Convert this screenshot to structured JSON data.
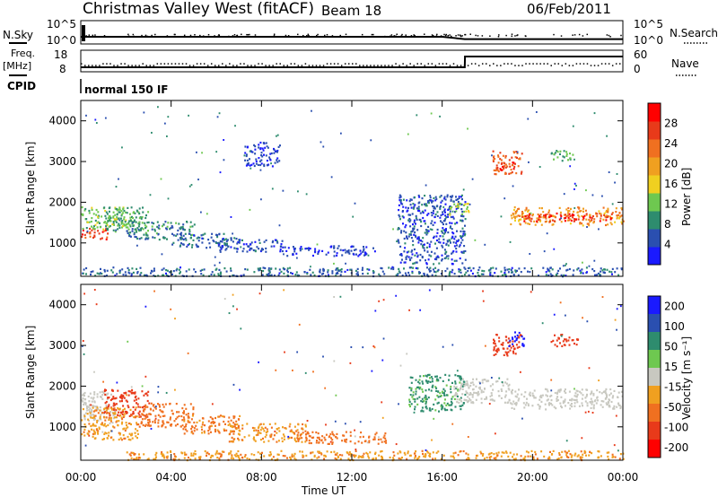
{
  "header": {
    "station": "Christmas Valley West (fitACF)",
    "beam": "Beam 18",
    "date": "06/Feb/2011"
  },
  "left_labels": {
    "nsky": "N.Sky",
    "freq": "Freq.",
    "freq_unit": "[MHz]",
    "cpid": "CPID"
  },
  "right_labels": {
    "nsearch": "N.Search",
    "nave": "Nave"
  },
  "cpid_value": "normal 150 IF",
  "colors": {
    "ground_scatter": "#c8c8c0",
    "accent_power": [
      "#1a1aff",
      "#2a4fb0",
      "#2e8c6e",
      "#6ec850",
      "#f0d020",
      "#f0a020",
      "#f07020",
      "#e83a1a",
      "#ff0000"
    ],
    "accent_velocity": [
      "#1a1aff",
      "#2a4fb0",
      "#2e8c6e",
      "#6ec850",
      "#c8c8c0",
      "#f0a020",
      "#f07020",
      "#e83a1a",
      "#ff0000"
    ]
  },
  "chart_data": [
    {
      "type": "line",
      "title": "N.Sky / N.Search",
      "ylabel": "N.Sky",
      "y_ticks_left": [
        "10^5",
        "10^0"
      ],
      "y_ticks_right": [
        "10^5",
        "10^0"
      ],
      "x": [
        0,
        2,
        4,
        6,
        8,
        10,
        12,
        14,
        16,
        17,
        18,
        20,
        22,
        24
      ],
      "series": [
        {
          "name": "N.Sky",
          "values": [
            1.6,
            1.6,
            1.6,
            1.6,
            1.6,
            1.6,
            1.6,
            1.6,
            1.6,
            1.0,
            1.0,
            1.0,
            1.0,
            1.0
          ]
        }
      ]
    },
    {
      "type": "line",
      "ylabel": "Freq. [MHz]",
      "y_ticks_left": [
        "18",
        "8"
      ],
      "y_ticks_right": [
        "60",
        "0"
      ],
      "x": [
        0,
        4,
        8,
        12,
        16,
        17,
        17.01,
        20,
        24
      ],
      "series": [
        {
          "name": "Freq",
          "values": [
            10.5,
            10.5,
            10.5,
            10.5,
            10.5,
            10.5,
            18.0,
            18.0,
            18.0
          ]
        },
        {
          "name": "Nave",
          "values": [
            25,
            25,
            25,
            25,
            25,
            25,
            25,
            25,
            25
          ]
        }
      ]
    },
    {
      "type": "heatmap",
      "ylabel": "Slant Range [km]",
      "y_ticks": [
        "1000",
        "2000",
        "3000",
        "4000"
      ],
      "ylim": [
        180,
        4500
      ],
      "xlim": [
        0,
        24
      ],
      "colorbar_label": "Power [dB]",
      "colorbar_ticks": [
        "4",
        "8",
        "12",
        "16",
        "20",
        "24",
        "28"
      ],
      "regions": [
        {
          "x0": 0.0,
          "x1": 1.2,
          "y0": 1100,
          "y1": 1400,
          "value": 26
        },
        {
          "x0": 0.0,
          "x1": 2.0,
          "y0": 1350,
          "y1": 1900,
          "value": 12
        },
        {
          "x0": 1.0,
          "x1": 3.0,
          "y0": 1300,
          "y1": 1900,
          "value": 10
        },
        {
          "x0": 2.0,
          "x1": 5.0,
          "y0": 1100,
          "y1": 1550,
          "value": 8
        },
        {
          "x0": 4.0,
          "x1": 7.0,
          "y0": 900,
          "y1": 1250,
          "value": 6
        },
        {
          "x0": 6.0,
          "x1": 9.0,
          "y0": 800,
          "y1": 1100,
          "value": 5
        },
        {
          "x0": 9.0,
          "x1": 13.0,
          "y0": 700,
          "y1": 950,
          "value": 4
        },
        {
          "x0": 0.0,
          "x1": 24.0,
          "y0": 200,
          "y1": 420,
          "value": 6
        },
        {
          "x0": 14.0,
          "x1": 17.0,
          "y0": 500,
          "y1": 2200,
          "value": 5
        },
        {
          "x0": 16.3,
          "x1": 17.2,
          "y0": 1700,
          "y1": 2000,
          "value": 14
        },
        {
          "x0": 18.2,
          "x1": 19.5,
          "y0": 2700,
          "y1": 3300,
          "value": 24
        },
        {
          "x0": 18.5,
          "x1": 19.2,
          "y0": 2800,
          "y1": 3000,
          "value": 28
        },
        {
          "x0": 20.8,
          "x1": 21.8,
          "y0": 3000,
          "y1": 3300,
          "value": 10
        },
        {
          "x0": 19.0,
          "x1": 24.0,
          "y0": 1450,
          "y1": 1900,
          "value": 20
        },
        {
          "x0": 19.5,
          "x1": 23.5,
          "y0": 1550,
          "y1": 1750,
          "value": 28
        },
        {
          "x0": 7.2,
          "x1": 8.8,
          "y0": 2900,
          "y1": 3500,
          "value": 4
        }
      ]
    },
    {
      "type": "heatmap",
      "ylabel": "Slant Range [km]",
      "y_ticks": [
        "1000",
        "2000",
        "3000",
        "4000"
      ],
      "ylim": [
        180,
        4500
      ],
      "xlim": [
        0,
        24
      ],
      "x_ticks": [
        "00:00",
        "04:00",
        "08:00",
        "12:00",
        "16:00",
        "20:00",
        "00:00"
      ],
      "xlabel": "Time UT",
      "colorbar_label": "Velocity [m s⁻¹]",
      "colorbar_ticks": [
        "200",
        "100",
        "50",
        "15",
        "-15",
        "-50",
        "-100",
        "-200"
      ],
      "regions": [
        {
          "x0": 0.0,
          "x1": 1.5,
          "y0": 1100,
          "y1": 1900,
          "value": 0,
          "ground": true
        },
        {
          "x0": 1.0,
          "x1": 3.0,
          "y0": 1250,
          "y1": 1950,
          "value": -120
        },
        {
          "x0": 2.5,
          "x1": 5.0,
          "y0": 1000,
          "y1": 1600,
          "value": -70
        },
        {
          "x0": 0.0,
          "x1": 2.5,
          "y0": 700,
          "y1": 1500,
          "value": -40
        },
        {
          "x0": 4.5,
          "x1": 7.0,
          "y0": 850,
          "y1": 1300,
          "value": -60
        },
        {
          "x0": 6.5,
          "x1": 10.0,
          "y0": 650,
          "y1": 1100,
          "value": -40
        },
        {
          "x0": 9.5,
          "x1": 13.5,
          "y0": 600,
          "y1": 900,
          "value": -80
        },
        {
          "x0": 2.0,
          "x1": 24.0,
          "y0": 200,
          "y1": 430,
          "value": -40
        },
        {
          "x0": 14.5,
          "x1": 17.0,
          "y0": 1400,
          "y1": 2300,
          "value": 40
        },
        {
          "x0": 16.5,
          "x1": 19.0,
          "y0": 1600,
          "y1": 2200,
          "value": 0,
          "ground": true
        },
        {
          "x0": 19.0,
          "x1": 24.0,
          "y0": 1450,
          "y1": 1950,
          "value": 0,
          "ground": true
        },
        {
          "x0": 18.2,
          "x1": 19.5,
          "y0": 2750,
          "y1": 3300,
          "value": -150
        },
        {
          "x0": 18.8,
          "x1": 19.6,
          "y0": 3000,
          "y1": 3350,
          "value": 180
        },
        {
          "x0": 20.8,
          "x1": 22.0,
          "y0": 3000,
          "y1": 3300,
          "value": -180
        }
      ]
    }
  ]
}
